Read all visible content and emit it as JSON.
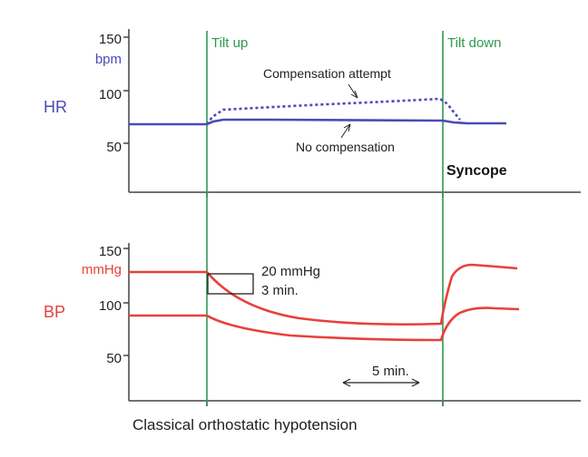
{
  "hr_panel": {
    "side_label": "HR",
    "unit": "bpm",
    "ticks": [
      {
        "value": 150,
        "label": "150"
      },
      {
        "value": 100,
        "label": "100"
      },
      {
        "value": 50,
        "label": "50"
      }
    ],
    "annotation_compensation": "Compensation attempt",
    "annotation_no_compensation": "No compensation",
    "annotation_syncope": "Syncope"
  },
  "bp_panel": {
    "side_label": "BP",
    "unit": "mmHg",
    "ticks": [
      {
        "value": 150,
        "label": "150"
      },
      {
        "value": 100,
        "label": "100"
      },
      {
        "value": 50,
        "label": "50"
      }
    ],
    "drop_box_line1": "20 mmHg",
    "drop_box_line2": "3 min.",
    "scale_bar_label": "5 min."
  },
  "events": {
    "tilt_up": "Tilt up",
    "tilt_down": "Tilt down"
  },
  "caption": "Classical orthostatic hypotension",
  "colors": {
    "hr": "#4a4ab8",
    "bp": "#e8403a",
    "event_line": "#2e9a4e",
    "axis": "#444444",
    "text": "#222222"
  }
}
